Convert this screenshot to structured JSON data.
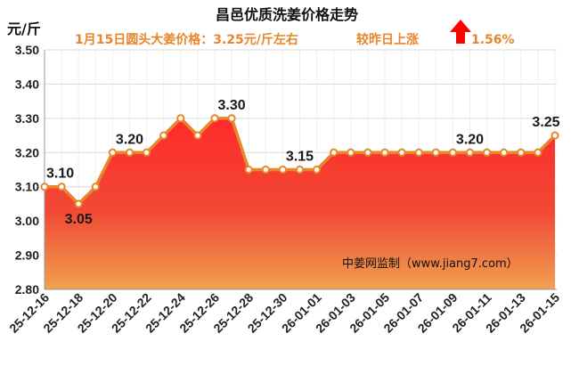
{
  "header": {
    "title": "昌邑优质洗姜价格走势",
    "price_note": "1月15日圆头大姜价格：3.25元/斤左右",
    "change_label": "较昨日上涨",
    "change_value": "1.56%",
    "change_direction": "up",
    "arrow_color": "#ff0000"
  },
  "source": "中姜网监制（www.jiang7.com）",
  "colors": {
    "line": "#e8862a",
    "area_top": "#ff2a2a",
    "area_bottom": "#f0a050",
    "grid": "#d9d9d9"
  },
  "chart_data": {
    "type": "area",
    "title": "昌邑优质洗姜价格走势",
    "ylabel": "元/斤",
    "xlabel": "",
    "ylim": [
      2.8,
      3.5
    ],
    "yticks": [
      "3.50",
      "3.40",
      "3.30",
      "3.20",
      "3.10",
      "3.00",
      "2.90",
      "2.80"
    ],
    "grid": true,
    "categories": [
      "25-12-16",
      "25-12-17",
      "25-12-18",
      "25-12-19",
      "25-12-20",
      "25-12-21",
      "25-12-22",
      "25-12-23",
      "25-12-24",
      "25-12-25",
      "25-12-26",
      "25-12-27",
      "25-12-28",
      "25-12-29",
      "25-12-30",
      "25-12-31",
      "26-01-01",
      "26-01-02",
      "26-01-03",
      "26-01-04",
      "26-01-05",
      "26-01-06",
      "26-01-07",
      "26-01-08",
      "26-01-09",
      "26-01-10",
      "26-01-11",
      "26-01-12",
      "26-01-13",
      "26-01-14",
      "26-01-15"
    ],
    "x_tick_labels": [
      "25-12-16",
      "25-12-18",
      "25-12-20",
      "25-12-22",
      "25-12-24",
      "25-12-26",
      "25-12-28",
      "25-12-30",
      "26-01-01",
      "26-01-03",
      "26-01-05",
      "26-01-07",
      "26-01-09",
      "26-01-11",
      "26-01-13",
      "26-01-15"
    ],
    "values": [
      3.1,
      3.1,
      3.05,
      3.1,
      3.2,
      3.2,
      3.2,
      3.25,
      3.3,
      3.25,
      3.3,
      3.3,
      3.15,
      3.15,
      3.15,
      3.15,
      3.15,
      3.2,
      3.2,
      3.2,
      3.2,
      3.2,
      3.2,
      3.2,
      3.2,
      3.2,
      3.2,
      3.2,
      3.2,
      3.2,
      3.25
    ],
    "annotations": [
      {
        "index": 0,
        "text": "3.10",
        "pos": "above"
      },
      {
        "index": 2,
        "text": "3.05",
        "pos": "below"
      },
      {
        "index": 5,
        "text": "3.20",
        "pos": "above"
      },
      {
        "index": 11,
        "text": "3.30",
        "pos": "above"
      },
      {
        "index": 15,
        "text": "3.15",
        "pos": "above"
      },
      {
        "index": 25,
        "text": "3.20",
        "pos": "above"
      },
      {
        "index": 30,
        "text": "3.25",
        "pos": "above"
      }
    ]
  }
}
